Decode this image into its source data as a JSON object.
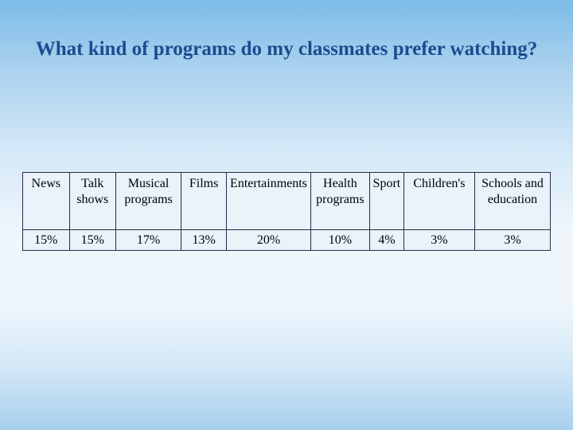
{
  "slide": {
    "title": "What kind of programs do my classmates prefer watching?",
    "background_gradient": [
      "#7bbce8",
      "#a8d0ee",
      "#d4e8f7",
      "#f0f7fc",
      "#f0f7fc",
      "#d4e8f7",
      "#a8d0ee"
    ],
    "title_color": "#1a4d8f",
    "title_fontsize": 25
  },
  "table": {
    "type": "table",
    "border_color": "#2a2a4a",
    "cell_background": "#eaf2fa",
    "header_fontsize": 16,
    "value_fontsize": 16,
    "columns": [
      {
        "label": "News",
        "width_pct": 8.2
      },
      {
        "label": "Talk shows",
        "width_pct": 8.2
      },
      {
        "label": "Musical programs",
        "width_pct": 11.5
      },
      {
        "label": "Films",
        "width_pct": 8.0
      },
      {
        "label": "Entertainments",
        "width_pct": 14.8
      },
      {
        "label": "Health programs",
        "width_pct": 10.4
      },
      {
        "label": "Sport",
        "width_pct": 6.0
      },
      {
        "label": "Children's",
        "width_pct": 12.5
      },
      {
        "label": "Schools and education",
        "width_pct": 13.3
      }
    ],
    "rows": [
      [
        "15%",
        "15%",
        "17%",
        "13%",
        "20%",
        "10%",
        "4%",
        "3%",
        "3%"
      ]
    ]
  }
}
